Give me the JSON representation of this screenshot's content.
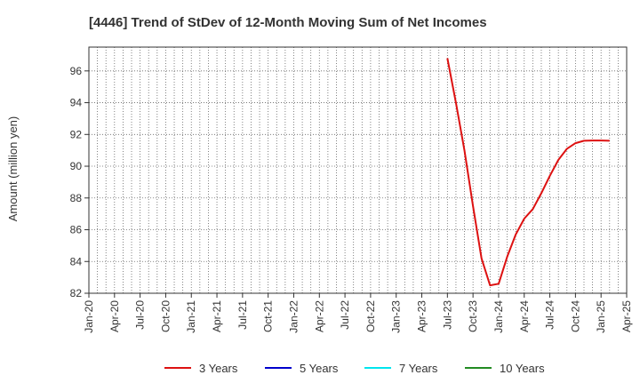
{
  "chart_data": {
    "type": "line",
    "title": "[4446]  Trend of StDev of 12-Month Moving Sum of Net Incomes",
    "xlabel": "",
    "ylabel": "Amount (million yen)",
    "ylim": [
      82,
      97.5
    ],
    "yticks": [
      82,
      84,
      86,
      88,
      90,
      92,
      94,
      96
    ],
    "xticks": [
      "Jan-20",
      "Apr-20",
      "Jul-20",
      "Oct-20",
      "Jan-21",
      "Apr-21",
      "Jul-21",
      "Oct-21",
      "Jan-22",
      "Apr-22",
      "Jul-22",
      "Oct-22",
      "Jan-23",
      "Apr-23",
      "Jul-23",
      "Oct-23",
      "Jan-24",
      "Apr-24",
      "Jul-24",
      "Oct-24",
      "Jan-25",
      "Apr-25"
    ],
    "x_months_from_jan20": [
      0,
      63
    ],
    "grid": true,
    "legend_position": "bottom",
    "series": [
      {
        "name": "3 Years",
        "color": "#dd1111",
        "points": [
          {
            "x": 42,
            "y": 96.8
          },
          {
            "x": 43,
            "y": 94.0
          },
          {
            "x": 44,
            "y": 91.0
          },
          {
            "x": 45,
            "y": 87.5
          },
          {
            "x": 46,
            "y": 84.2
          },
          {
            "x": 47,
            "y": 82.5
          },
          {
            "x": 48,
            "y": 82.6
          },
          {
            "x": 49,
            "y": 84.3
          },
          {
            "x": 50,
            "y": 85.7
          },
          {
            "x": 51,
            "y": 86.7
          },
          {
            "x": 52,
            "y": 87.3
          },
          {
            "x": 53,
            "y": 88.3
          },
          {
            "x": 54,
            "y": 89.4
          },
          {
            "x": 55,
            "y": 90.4
          },
          {
            "x": 56,
            "y": 91.1
          },
          {
            "x": 57,
            "y": 91.45
          },
          {
            "x": 58,
            "y": 91.6
          },
          {
            "x": 59,
            "y": 91.62
          },
          {
            "x": 60,
            "y": 91.62
          },
          {
            "x": 61,
            "y": 91.6
          }
        ]
      },
      {
        "name": "5 Years",
        "color": "#0000cc",
        "points": []
      },
      {
        "name": "7 Years",
        "color": "#00e5ee",
        "points": []
      },
      {
        "name": "10 Years",
        "color": "#228b22",
        "points": []
      }
    ]
  }
}
